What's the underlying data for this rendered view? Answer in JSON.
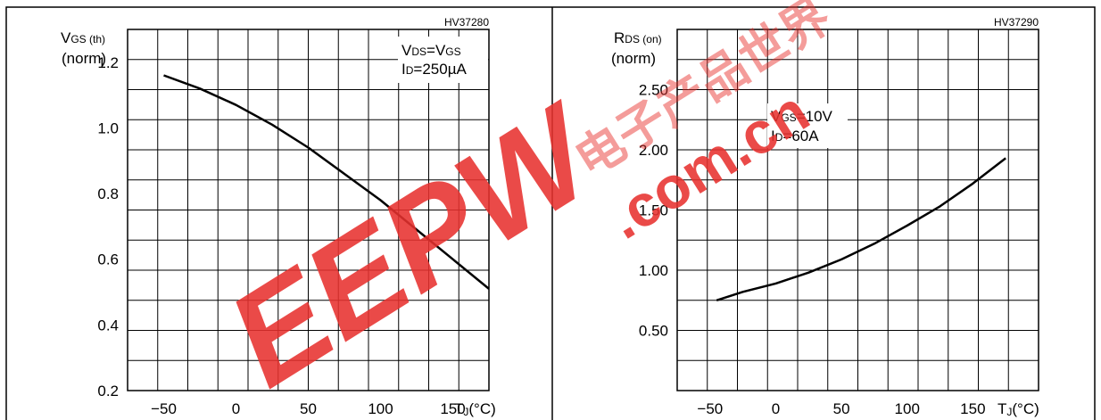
{
  "chart_data": [
    {
      "type": "line",
      "figure_code": "HV37280",
      "ylabel_main": "V",
      "ylabel_sub": "GS (th)",
      "ylabel_unit": "(norm)",
      "xlabel_main": "T",
      "xlabel_sub": "J",
      "xlabel_unit": "(°C)",
      "conditions": [
        {
          "main": "V",
          "sub": "DS",
          "mid": "=V",
          "sub2": "GS",
          "tail": ""
        },
        {
          "main": "I",
          "sub": "D",
          "mid": "=250µA",
          "sub2": "",
          "tail": ""
        }
      ],
      "xlim": [
        -75,
        175
      ],
      "ylim": [
        0.2,
        1.3
      ],
      "x_ticks": [
        -50,
        0,
        50,
        100,
        150
      ],
      "x_tick_labels": [
        "−50",
        "0",
        "50",
        "100",
        "150"
      ],
      "y_ticks": [
        0.2,
        0.4,
        0.6,
        0.8,
        1.0,
        1.2
      ],
      "y_tick_labels": [
        "0.2",
        "0.4",
        "0.6",
        "0.8",
        "1.0",
        "1.2"
      ],
      "grid": true,
      "series": [
        {
          "x": [
            -50,
            -25,
            0,
            25,
            50,
            75,
            100,
            125,
            150,
            175
          ],
          "y": [
            1.16,
            1.12,
            1.07,
            1.01,
            0.94,
            0.86,
            0.78,
            0.69,
            0.6,
            0.51
          ]
        }
      ]
    },
    {
      "type": "line",
      "figure_code": "HV37290",
      "ylabel_main": "R",
      "ylabel_sub": "DS (on)",
      "ylabel_unit": "(norm)",
      "xlabel_main": "T",
      "xlabel_sub": "J",
      "xlabel_unit": "(°C)",
      "conditions": [
        {
          "main": "V",
          "sub": "GS",
          "mid": "=10V",
          "sub2": "",
          "tail": ""
        },
        {
          "main": "I",
          "sub": "D",
          "mid": "=60A",
          "sub2": "",
          "tail": ""
        }
      ],
      "xlim": [
        -75,
        200
      ],
      "ylim": [
        0,
        3.0
      ],
      "x_ticks": [
        -50,
        0,
        50,
        100,
        150
      ],
      "x_tick_labels": [
        "−50",
        "0",
        "50",
        "100",
        "150"
      ],
      "y_ticks": [
        0.5,
        1.0,
        1.5,
        2.0,
        2.5
      ],
      "y_tick_labels": [
        "0.50",
        "1.00",
        "1.50",
        "2.00",
        "2.50"
      ],
      "grid": true,
      "series": [
        {
          "x": [
            -45,
            -25,
            0,
            25,
            50,
            75,
            100,
            125,
            150,
            175
          ],
          "y": [
            0.75,
            0.82,
            0.89,
            0.98,
            1.09,
            1.22,
            1.37,
            1.53,
            1.72,
            1.93
          ]
        }
      ]
    }
  ],
  "watermark": {
    "brand": "EEPW",
    "domain": ".com.cn",
    "chinese": "电子产品世界",
    "color": "#e8322f"
  }
}
